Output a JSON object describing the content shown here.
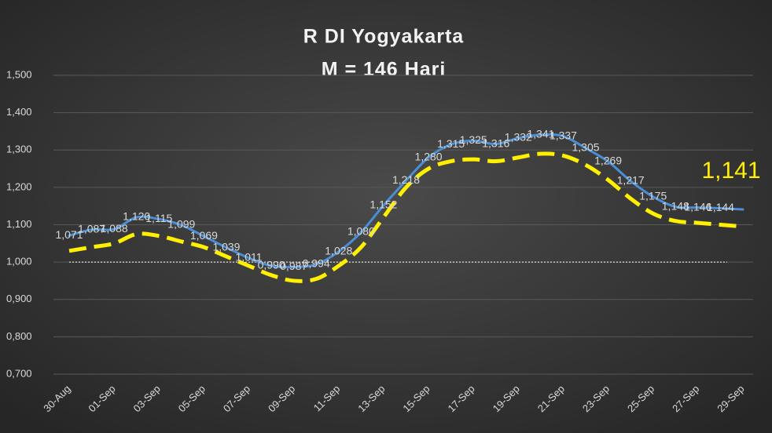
{
  "chart_data": {
    "type": "line",
    "title": "R DI Yogyakarta",
    "subtitle": "M = 146 Hari",
    "categories": [
      "30-Aug",
      null,
      "01-Sep",
      null,
      "03-Sep",
      null,
      "05-Sep",
      null,
      "07-Sep",
      null,
      "09-Sep",
      null,
      "11-Sep",
      null,
      "13-Sep",
      null,
      "15-Sep",
      null,
      "17-Sep",
      null,
      "19-Sep",
      null,
      "21-Sep",
      null,
      "23-Sep",
      null,
      "25-Sep",
      null,
      "27-Sep",
      null,
      "29-Sep"
    ],
    "series": [
      {
        "color": "#4a8fd6",
        "style": "solid",
        "values": [
          1.071,
          1.087,
          1.088,
          1.12,
          1.115,
          1.099,
          1.069,
          1.039,
          1.011,
          0.99,
          0.987,
          0.994,
          1.028,
          1.08,
          1.152,
          1.218,
          1.28,
          1.315,
          1.325,
          1.316,
          1.332,
          1.341,
          1.337,
          1.305,
          1.269,
          1.217,
          1.175,
          1.148,
          1.146,
          1.144,
          1.141
        ],
        "value_labels": [
          "1,071",
          "1,087",
          "1,088",
          "1,120",
          "1,115",
          "1,099",
          "1,069",
          "1,039",
          "1,011",
          "0,990",
          "0,987",
          "0,994",
          "1,028",
          "1,080",
          "1,152",
          "1,218",
          "1,280",
          "1,315",
          "1,325",
          "1,316",
          "1,332",
          "1,341",
          "1,337",
          "1,305",
          "1,269",
          "1,217",
          "1,175",
          "1,148",
          "1,146",
          "1,144",
          "1,141"
        ]
      },
      {
        "color": "#ffef00",
        "style": "dashed",
        "values": [
          1.03,
          1.04,
          1.05,
          1.075,
          1.07,
          1.055,
          1.04,
          1.015,
          0.99,
          0.965,
          0.95,
          0.955,
          0.99,
          1.04,
          1.12,
          1.2,
          1.25,
          1.27,
          1.275,
          1.27,
          1.28,
          1.29,
          1.285,
          1.26,
          1.22,
          1.17,
          1.13,
          1.11,
          1.105,
          1.1,
          1.095
        ]
      }
    ],
    "reference_line": 1,
    "ylim": [
      0.7,
      1.5
    ],
    "yticks": [
      {
        "value": 0.7,
        "label": "0,700"
      },
      {
        "value": 0.8,
        "label": "0,800"
      },
      {
        "value": 0.9,
        "label": "0,900"
      },
      {
        "value": 1.0,
        "label": "1,000"
      },
      {
        "value": 1.1,
        "label": "1,100"
      },
      {
        "value": 1.2,
        "label": "1,200"
      },
      {
        "value": 1.3,
        "label": "1,300"
      },
      {
        "value": 1.4,
        "label": "1,400"
      },
      {
        "value": 1.5,
        "label": "1,500"
      }
    ],
    "grid": true
  }
}
